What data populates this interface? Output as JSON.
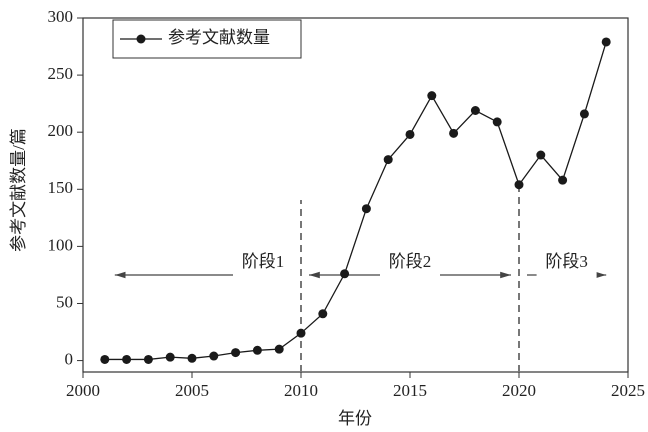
{
  "chart_data": {
    "type": "line",
    "x": [
      2001,
      2002,
      2003,
      2004,
      2005,
      2006,
      2007,
      2008,
      2009,
      2010,
      2011,
      2012,
      2013,
      2014,
      2015,
      2016,
      2017,
      2018,
      2019,
      2020,
      2021,
      2022,
      2023,
      2024
    ],
    "series": [
      {
        "name": "参考文献数量",
        "color": "#1a1a1a",
        "values": [
          1,
          1,
          1,
          3,
          2,
          4,
          7,
          9,
          10,
          24,
          41,
          76,
          133,
          176,
          198,
          232,
          199,
          219,
          209,
          154,
          180,
          158,
          216,
          279
        ]
      }
    ],
    "xlim": [
      2000,
      2025
    ],
    "xticks": [
      2000,
      2005,
      2010,
      2015,
      2020,
      2025
    ],
    "ylim": [
      -10,
      300
    ],
    "yticks": [
      0,
      50,
      100,
      150,
      200,
      250,
      300
    ],
    "xlabel": "年份",
    "ylabel": "参考文献数量/篇",
    "legend": "upper left",
    "vlines": [
      2010,
      2020
    ],
    "phases": [
      {
        "label": "阶段1",
        "start": 2001,
        "end": 2010
      },
      {
        "label": "阶段2",
        "start": 2010,
        "end": 2020
      },
      {
        "label": "阶段3",
        "start": 2020,
        "end": 2024
      }
    ]
  }
}
